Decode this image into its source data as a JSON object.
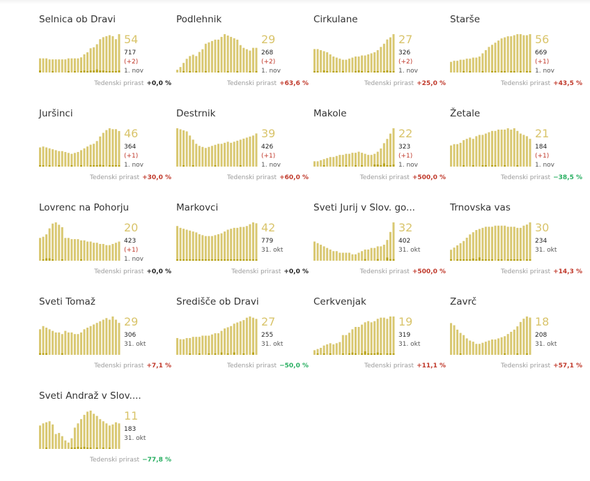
{
  "growth_label": "Tedenski prirast",
  "colors": {
    "bar": "#d9c872",
    "bar_dark": "#b8a319",
    "big_number": "#d9c46b",
    "positive": "#c0392b",
    "negative": "#27ae60"
  },
  "chart_data": [
    {
      "type": "bar",
      "title": "Selnica ob Dravi",
      "big": "54",
      "total": "717",
      "delta": "(+2)",
      "date": "1. nov",
      "growth": "+0,0 %",
      "growth_sign": "zero",
      "values": [
        14,
        14,
        14,
        13,
        13,
        13,
        13,
        13,
        13,
        14,
        14,
        14,
        14,
        15,
        18,
        20,
        24,
        25,
        28,
        33,
        35,
        36,
        37,
        36,
        33,
        38
      ],
      "dark": [
        2,
        0,
        0,
        0,
        1,
        0,
        0,
        0,
        0,
        1,
        0,
        1,
        0,
        1,
        2,
        1,
        2,
        2,
        3,
        2,
        2,
        1,
        1,
        1,
        1,
        2
      ]
    },
    {
      "type": "bar",
      "title": "Podlehnik",
      "big": "29",
      "total": "268",
      "delta": "(+2)",
      "date": "1. nov",
      "growth": "+63,6 %",
      "growth_sign": "pos",
      "values": [
        2,
        4,
        7,
        10,
        12,
        13,
        12,
        15,
        17,
        21,
        22,
        23,
        24,
        24,
        26,
        28,
        27,
        26,
        25,
        24,
        20,
        18,
        17,
        16,
        18,
        18
      ],
      "dark": [
        0,
        0,
        1,
        0,
        1,
        0,
        1,
        0,
        0,
        1,
        0,
        0,
        0,
        1,
        0,
        0,
        1,
        0,
        0,
        1,
        0,
        0,
        0,
        1,
        0,
        1
      ]
    },
    {
      "type": "bar",
      "title": "Cirkulane",
      "big": "27",
      "total": "326",
      "delta": "(+2)",
      "date": "1. nov",
      "growth": "+25,0 %",
      "growth_sign": "pos",
      "values": [
        22,
        22,
        21,
        20,
        19,
        17,
        15,
        14,
        13,
        12,
        12,
        13,
        14,
        15,
        15,
        16,
        16,
        17,
        18,
        19,
        21,
        24,
        27,
        31,
        33,
        36
      ],
      "dark": [
        1,
        1,
        0,
        2,
        1,
        0,
        1,
        1,
        0,
        1,
        0,
        0,
        0,
        1,
        2,
        1,
        0,
        1,
        0,
        1,
        1,
        0,
        1,
        2,
        1,
        1
      ]
    },
    {
      "type": "bar",
      "title": "Starše",
      "big": "56",
      "total": "669",
      "delta": "(+1)",
      "date": "1. nov",
      "growth": "+43,5 %",
      "growth_sign": "pos",
      "values": [
        10,
        11,
        11,
        12,
        12,
        13,
        13,
        14,
        14,
        15,
        18,
        21,
        24,
        26,
        28,
        30,
        32,
        33,
        34,
        34,
        35,
        36,
        36,
        35,
        35,
        36
      ],
      "dark": [
        0,
        0,
        0,
        0,
        1,
        0,
        1,
        0,
        0,
        0,
        1,
        0,
        0,
        1,
        1,
        0,
        1,
        1,
        0,
        1,
        1,
        0,
        1,
        0,
        1,
        1
      ]
    },
    {
      "type": "bar",
      "title": "Juršinci",
      "big": "46",
      "total": "364",
      "delta": "(+1)",
      "date": "1. nov",
      "growth": "+30,0 %",
      "growth_sign": "pos",
      "values": [
        21,
        22,
        21,
        20,
        19,
        18,
        17,
        17,
        16,
        15,
        14,
        15,
        16,
        18,
        20,
        22,
        24,
        25,
        28,
        33,
        37,
        40,
        42,
        41,
        41,
        39
      ],
      "dark": [
        1,
        1,
        0,
        1,
        0,
        0,
        1,
        0,
        0,
        0,
        1,
        0,
        0,
        1,
        0,
        0,
        1,
        1,
        1,
        2,
        1,
        0,
        1,
        1,
        1,
        1
      ]
    },
    {
      "type": "bar",
      "title": "Destrnik",
      "big": "39",
      "total": "426",
      "delta": "(+1)",
      "date": "1. nov",
      "growth": "+60,0 %",
      "growth_sign": "pos",
      "values": [
        37,
        36,
        35,
        34,
        30,
        26,
        22,
        20,
        19,
        18,
        19,
        20,
        21,
        22,
        22,
        23,
        24,
        23,
        24,
        25,
        26,
        27,
        28,
        29,
        30,
        32
      ],
      "dark": [
        0,
        0,
        1,
        0,
        0,
        1,
        0,
        0,
        0,
        0,
        0,
        0,
        1,
        0,
        0,
        0,
        0,
        0,
        0,
        0,
        1,
        0,
        0,
        0,
        0,
        0
      ]
    },
    {
      "type": "bar",
      "title": "Makole",
      "big": "22",
      "total": "323",
      "delta": "(+1)",
      "date": "1. nov",
      "growth": "+500,0 %",
      "growth_sign": "pos",
      "values": [
        5,
        5,
        6,
        7,
        8,
        9,
        9,
        10,
        11,
        11,
        12,
        12,
        13,
        13,
        14,
        13,
        12,
        11,
        11,
        12,
        14,
        17,
        22,
        26,
        31,
        36
      ],
      "dark": [
        0,
        0,
        0,
        1,
        0,
        0,
        0,
        0,
        1,
        0,
        1,
        0,
        0,
        1,
        0,
        1,
        0,
        0,
        0,
        2,
        2,
        1,
        3,
        1,
        1,
        2
      ]
    },
    {
      "type": "bar",
      "title": "Žetale",
      "big": "21",
      "total": "184",
      "delta": "(+1)",
      "date": "1. nov",
      "growth": "−38,5 %",
      "growth_sign": "neg",
      "values": [
        16,
        17,
        17,
        18,
        20,
        21,
        22,
        21,
        23,
        24,
        24,
        25,
        26,
        27,
        27,
        28,
        28,
        28,
        29,
        28,
        29,
        27,
        25,
        24,
        23,
        21
      ],
      "dark": [
        0,
        0,
        0,
        0,
        1,
        0,
        0,
        1,
        0,
        0,
        1,
        1,
        0,
        1,
        1,
        0,
        0,
        1,
        0,
        0,
        0,
        1,
        0,
        0,
        0,
        0
      ]
    },
    {
      "type": "bar",
      "title": "Lovrenc na Pohorju",
      "big": "20",
      "total": "423",
      "delta": "(+1)",
      "date": "1. nov",
      "growth": "+0,0 %",
      "growth_sign": "zero",
      "values": [
        19,
        20,
        22,
        27,
        31,
        32,
        30,
        28,
        19,
        19,
        18,
        18,
        18,
        17,
        17,
        16,
        16,
        15,
        15,
        14,
        14,
        13,
        13,
        14,
        15,
        16
      ],
      "dark": [
        0,
        1,
        2,
        2,
        1,
        0,
        0,
        1,
        0,
        0,
        0,
        0,
        0,
        1,
        0,
        0,
        0,
        0,
        0,
        0,
        0,
        0,
        0,
        0,
        0,
        0
      ]
    },
    {
      "type": "bar",
      "title": "Markovci",
      "big": "42",
      "total": "779",
      "delta": "",
      "date": "31. okt",
      "growth": "+0,0 %",
      "growth_sign": "zero",
      "values": [
        38,
        36,
        35,
        34,
        33,
        32,
        31,
        29,
        28,
        27,
        27,
        27,
        28,
        29,
        30,
        32,
        34,
        35,
        36,
        36,
        37,
        37,
        38,
        40,
        42,
        41
      ],
      "dark": [
        1,
        1,
        1,
        1,
        1,
        1,
        1,
        1,
        1,
        1,
        1,
        1,
        1,
        1,
        1,
        1,
        1,
        1,
        1,
        1,
        1,
        1,
        1,
        1,
        1,
        1
      ]
    },
    {
      "type": "bar",
      "title": "Sveti Jurij v Slov. go...",
      "big": "32",
      "total": "402",
      "delta": "",
      "date": "31. okt",
      "growth": "+500,0 %",
      "growth_sign": "pos",
      "values": [
        12,
        11,
        10,
        9,
        8,
        7,
        6,
        6,
        5,
        5,
        5,
        5,
        4,
        4,
        5,
        6,
        7,
        7,
        8,
        8,
        9,
        9,
        10,
        13,
        18,
        24
      ],
      "dark": [
        0,
        0,
        0,
        0,
        0,
        0,
        0,
        0,
        0,
        0,
        0,
        0,
        0,
        0,
        0,
        0,
        1,
        0,
        0,
        0,
        1,
        0,
        0,
        2,
        1,
        1
      ]
    },
    {
      "type": "bar",
      "title": "Trnovska vas",
      "big": "30",
      "total": "234",
      "delta": "",
      "date": "31. okt",
      "growth": "+14,3 %",
      "growth_sign": "pos",
      "values": [
        10,
        12,
        14,
        16,
        18,
        21,
        24,
        26,
        28,
        29,
        30,
        31,
        31,
        31,
        32,
        32,
        32,
        32,
        31,
        31,
        31,
        30,
        30,
        32,
        33,
        35
      ],
      "dark": [
        1,
        0,
        1,
        1,
        1,
        1,
        1,
        2,
        1,
        3,
        1,
        1,
        1,
        1,
        0,
        1,
        1,
        0,
        1,
        1,
        1,
        1,
        1,
        0,
        1,
        1
      ]
    },
    {
      "type": "bar",
      "title": "Sveti Tomaž",
      "big": "29",
      "total": "306",
      "delta": "",
      "date": "31. okt",
      "growth": "+7,1 %",
      "growth_sign": "pos",
      "values": [
        16,
        18,
        17,
        16,
        15,
        14,
        14,
        13,
        15,
        14,
        14,
        13,
        13,
        14,
        16,
        17,
        18,
        19,
        20,
        21,
        22,
        23,
        22,
        24,
        22,
        20
      ],
      "dark": [
        1,
        1,
        1,
        0,
        0,
        0,
        0,
        1,
        0,
        0,
        0,
        0,
        0,
        0,
        0,
        0,
        0,
        0,
        0,
        0,
        0,
        0,
        0,
        0,
        0,
        0
      ]
    },
    {
      "type": "bar",
      "title": "Središče ob Dravi",
      "big": "27",
      "total": "255",
      "delta": "",
      "date": "31. okt",
      "growth": "−50,0 %",
      "growth_sign": "neg",
      "values": [
        14,
        13,
        13,
        14,
        14,
        15,
        15,
        15,
        16,
        16,
        16,
        17,
        18,
        18,
        20,
        22,
        23,
        24,
        26,
        27,
        28,
        29,
        31,
        32,
        31,
        30
      ],
      "dark": [
        0,
        0,
        0,
        0,
        1,
        0,
        0,
        1,
        0,
        0,
        1,
        0,
        1,
        0,
        2,
        0,
        1,
        0,
        2,
        0,
        0,
        1,
        0,
        0,
        2,
        0
      ]
    },
    {
      "type": "bar",
      "title": "Cerkvenjak",
      "big": "19",
      "total": "319",
      "delta": "",
      "date": "31. okt",
      "growth": "+11,1 %",
      "growth_sign": "pos",
      "values": [
        4,
        5,
        6,
        8,
        9,
        10,
        9,
        10,
        11,
        17,
        17,
        19,
        22,
        24,
        24,
        26,
        28,
        29,
        28,
        29,
        31,
        32,
        32,
        31,
        33,
        33
      ],
      "dark": [
        0,
        1,
        0,
        1,
        0,
        1,
        0,
        0,
        0,
        1,
        0,
        1,
        2,
        1,
        0,
        1,
        3,
        1,
        1,
        1,
        2,
        1,
        0,
        1,
        1,
        1
      ]
    },
    {
      "type": "bar",
      "title": "Zavrč",
      "big": "18",
      "total": "208",
      "delta": "",
      "date": "31. okt",
      "growth": "+57,1 %",
      "growth_sign": "pos",
      "values": [
        29,
        27,
        23,
        20,
        18,
        15,
        13,
        12,
        10,
        10,
        11,
        12,
        13,
        14,
        14,
        15,
        16,
        17,
        19,
        21,
        23,
        26,
        30,
        33,
        35,
        34
      ],
      "dark": [
        0,
        0,
        0,
        1,
        0,
        0,
        0,
        0,
        0,
        0,
        0,
        0,
        0,
        0,
        0,
        0,
        0,
        1,
        0,
        0,
        0,
        1,
        0,
        0,
        1,
        0
      ]
    },
    {
      "type": "bar",
      "title": "Sveti Andraž v Slov....",
      "big": "11",
      "total": "183",
      "delta": "",
      "date": "31. okt",
      "growth": "−77,8 %",
      "growth_sign": "neg",
      "values": [
        22,
        24,
        25,
        26,
        23,
        14,
        15,
        12,
        8,
        6,
        10,
        20,
        24,
        28,
        32,
        35,
        36,
        33,
        31,
        28,
        26,
        24,
        22,
        23,
        25,
        24
      ],
      "dark": [
        0,
        0,
        1,
        0,
        0,
        0,
        0,
        0,
        0,
        0,
        1,
        1,
        2,
        1,
        2,
        1,
        1,
        0,
        1,
        0,
        1,
        0,
        1,
        0,
        0,
        0
      ]
    }
  ]
}
